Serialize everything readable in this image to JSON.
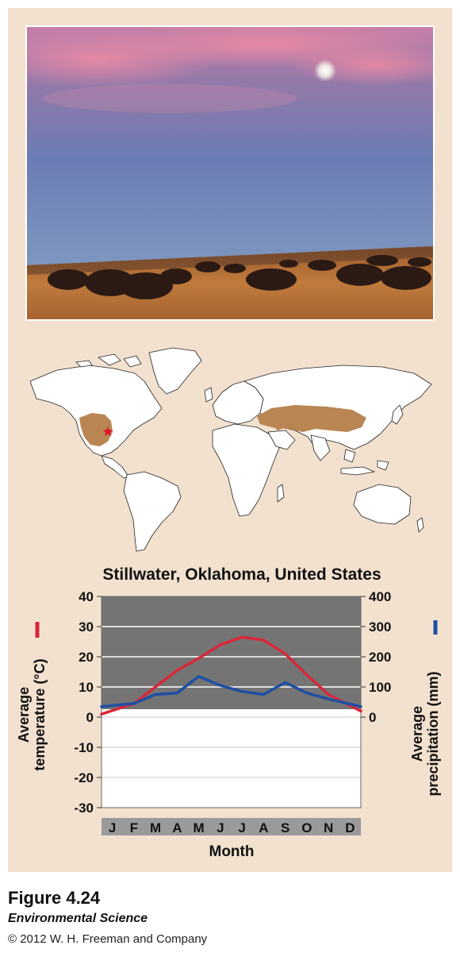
{
  "figure": {
    "number": "Figure 4.24",
    "book": "Environmental Science",
    "copyright": "© 2012 W. H. Freeman and Company"
  },
  "colors": {
    "panel_bg": "#f3e1cf",
    "land": "#ffffff",
    "grassland": "#b98552",
    "location_marker": "#e0142b",
    "temperature": "#d8283a",
    "precipitation": "#1f4fa3",
    "plot_positive_bg": "#747474",
    "plot_negative_bg": "#ffffff"
  },
  "photo": {
    "icon": "bison-grassland-photo"
  },
  "map": {
    "icon": "world-temperate-grassland-map"
  },
  "chart_data": {
    "type": "line",
    "title": "Stillwater, Oklahoma, United States",
    "xlabel": "Month",
    "ylabel_left": "Average temperature (°C)",
    "ylabel_right": "Average precipitation (mm)",
    "categories": [
      "J",
      "F",
      "M",
      "A",
      "M",
      "J",
      "J",
      "A",
      "S",
      "O",
      "N",
      "D"
    ],
    "ylim_left": [
      -30,
      40
    ],
    "yticks_left": [
      40,
      30,
      20,
      10,
      0,
      -10,
      -20,
      -30
    ],
    "ylim_right": [
      0,
      400
    ],
    "yticks_right": [
      400,
      300,
      200,
      100,
      0
    ],
    "grid": true,
    "legend": "rotated axis labels with colored line markers",
    "series": [
      {
        "name": "Average temperature (°C)",
        "axis": "left",
        "color": "#d8283a",
        "values": [
          1,
          4.5,
          10,
          15.5,
          19.5,
          24,
          26.5,
          25.5,
          21,
          14,
          7.5,
          2
        ]
      },
      {
        "name": "Average precipitation (mm)",
        "axis": "right",
        "color": "#1f4fa3",
        "values": [
          35,
          45,
          75,
          80,
          135,
          105,
          85,
          75,
          115,
          80,
          60,
          35
        ]
      }
    ]
  }
}
